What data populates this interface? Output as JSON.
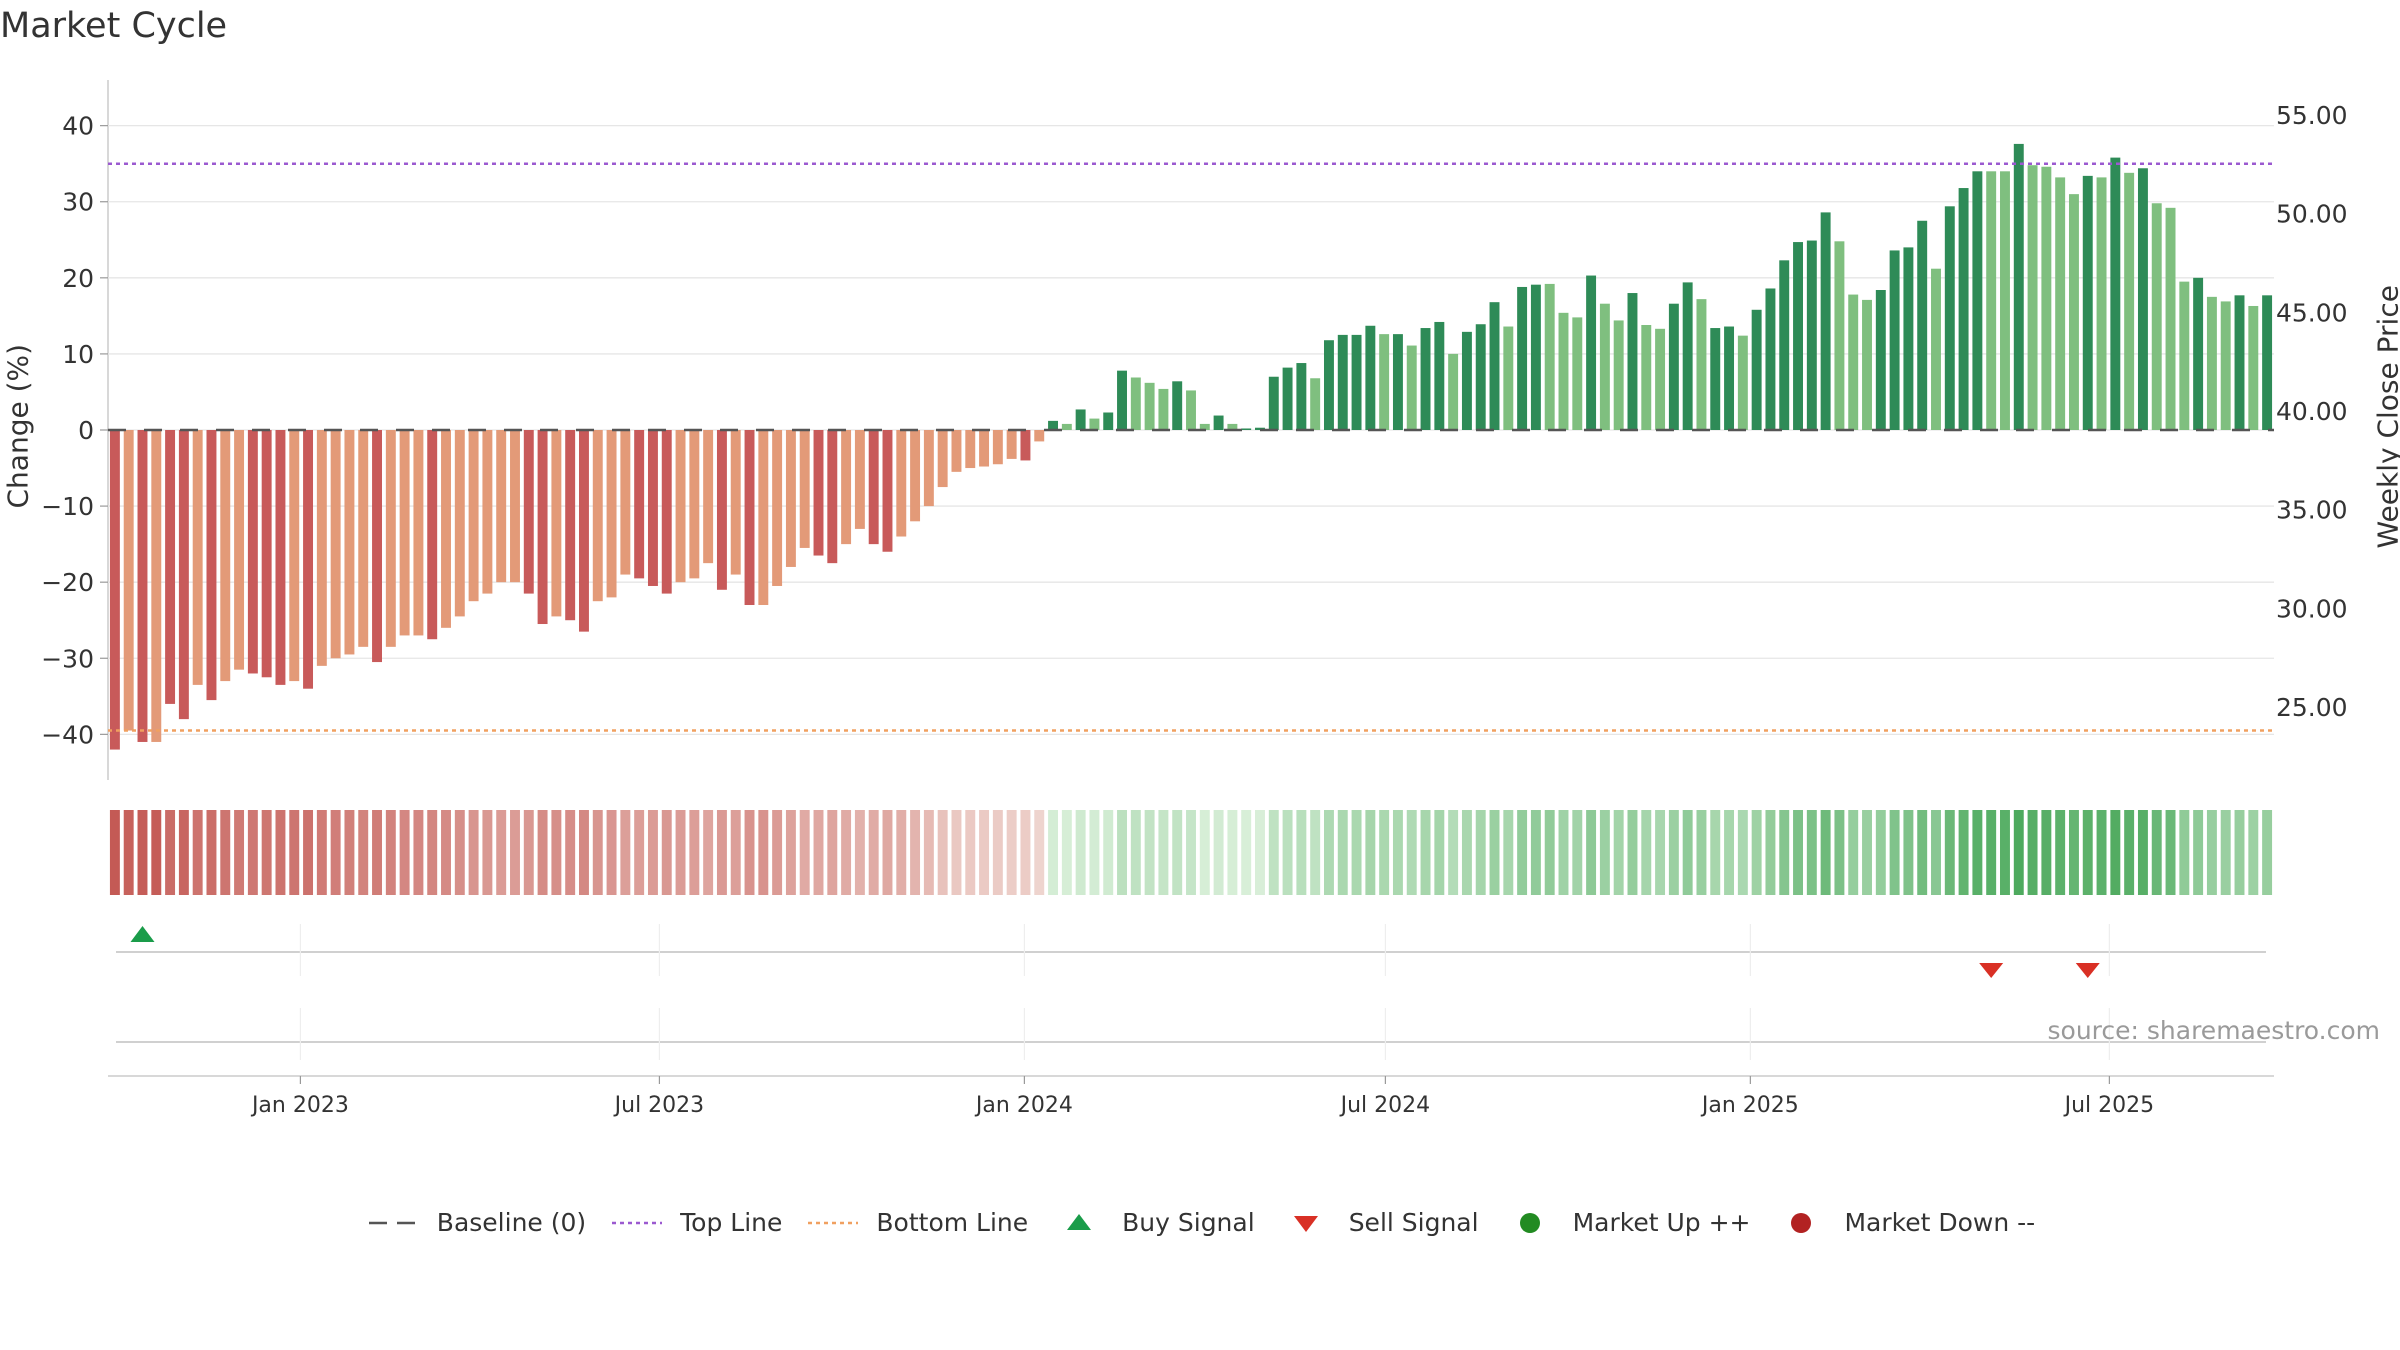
{
  "title": "Market Cycle",
  "source": "source: sharemaestro.com",
  "colors": {
    "strong_down": "#c85a5a",
    "weak_down": "#e39a78",
    "strong_up": "#2e8b57",
    "weak_up": "#7fbf7f",
    "top_line": "#9b59d0",
    "bottom_line": "#f0a060",
    "baseline": "#555555",
    "buy": "#1a9c4a",
    "sell": "#d93025",
    "market_up": "#228b22",
    "market_down": "#b22222"
  },
  "legend": [
    {
      "label": "Baseline (0)",
      "icon": "dash-line"
    },
    {
      "label": "Top Line",
      "icon": "dotted-purple-line"
    },
    {
      "label": "Bottom Line",
      "icon": "dotted-orange-line"
    },
    {
      "label": "Buy Signal",
      "icon": "triangle-up"
    },
    {
      "label": "Sell Signal",
      "icon": "triangle-down"
    },
    {
      "label": "Market Up ++",
      "icon": "circle-green"
    },
    {
      "label": "Market Down --",
      "icon": "circle-red"
    }
  ],
  "chart_data": {
    "type": "bar",
    "title": "Market Cycle",
    "ylabel": "Change (%)",
    "y2label": "Weekly Close Price",
    "ylim": [
      -46,
      46
    ],
    "y2lim": [
      20,
      57
    ],
    "yticks": [
      40,
      30,
      20,
      10,
      0,
      -10,
      -20,
      -30,
      -40
    ],
    "ytick_labels": [
      "40",
      "30",
      "20",
      "10",
      "0",
      "−10",
      "−20",
      "−30",
      "−40"
    ],
    "y2ticks": [
      55,
      50,
      45,
      40,
      35,
      30,
      25
    ],
    "y2tick_labels": [
      "55.00",
      "50.00",
      "45.00",
      "40.00",
      "35.00",
      "30.00",
      "25.00"
    ],
    "xlim": [
      "2022-09-26",
      "2025-09-22"
    ],
    "xticks": [
      "2023-01-01",
      "2023-07-01",
      "2024-01-01",
      "2024-07-01",
      "2025-01-01",
      "2025-07-01"
    ],
    "xtick_labels": [
      "Jan 2023",
      "Jul 2023",
      "Jan 2024",
      "Jul 2024",
      "Jan 2025",
      "Jul 2025"
    ],
    "grid": true,
    "baseline": 0,
    "top_line": 35,
    "bottom_line": -39.5,
    "start_week": "2022-09-26",
    "interval_days": 7,
    "values": [
      -42,
      -39.5,
      -41,
      -41,
      -36,
      -38,
      -33.5,
      -35.5,
      -33,
      -31.5,
      -32,
      -32.5,
      -33.5,
      -33,
      -34,
      -31,
      -30,
      -29.5,
      -28.5,
      -30.5,
      -28.5,
      -27,
      -27,
      -27.5,
      -26,
      -24.5,
      -22.5,
      -21.5,
      -20,
      -20,
      -21.5,
      -25.5,
      -24.5,
      -25,
      -26.5,
      -22.5,
      -22,
      -19,
      -19.5,
      -20.5,
      -21.5,
      -20,
      -19.5,
      -17.5,
      -21,
      -19,
      -23,
      -23,
      -20.5,
      -18,
      -15.5,
      -16.5,
      -17.5,
      -15,
      -13,
      -15,
      -16,
      -14,
      -12,
      -10,
      -7.5,
      -5.5,
      -5,
      -4.8,
      -4.5,
      -3.8,
      -4,
      -1.5,
      1.2,
      0.8,
      2.7,
      1.5,
      2.3,
      7.8,
      6.9,
      6.2,
      5.4,
      6.4,
      5.2,
      0.8,
      1.9,
      0.8,
      0.2,
      0.3,
      7,
      8.2,
      8.8,
      6.8,
      11.8,
      12.5,
      12.5,
      13.7,
      12.6,
      12.6,
      11.1,
      13.4,
      14.2,
      10,
      12.9,
      13.9,
      16.8,
      13.6,
      18.8,
      19.1,
      19.2,
      15.4,
      14.8,
      20.3,
      16.6,
      14.4,
      18,
      13.8,
      13.3,
      16.6,
      19.4,
      17.2,
      13.4,
      13.6,
      12.4,
      15.8,
      18.6,
      22.3,
      24.7,
      24.9,
      28.6,
      24.8,
      17.8,
      17.1,
      18.4,
      23.6,
      24,
      27.5,
      21.2,
      29.4,
      31.8,
      34,
      34,
      34,
      37.6,
      34.8,
      34.6,
      33.2,
      31,
      33.4,
      33.2,
      35.8,
      33.8,
      34.4,
      29.8,
      29.2,
      19.5,
      20,
      17.5,
      16.9,
      17.7,
      16.3,
      17.7
    ],
    "strength": [
      1,
      0,
      1,
      0,
      1,
      1,
      0,
      1,
      0,
      0,
      1,
      1,
      1,
      0,
      1,
      0,
      0,
      0,
      0,
      1,
      0,
      0,
      0,
      1,
      0,
      0,
      0,
      0,
      0,
      0,
      1,
      1,
      0,
      1,
      1,
      0,
      0,
      0,
      1,
      1,
      1,
      0,
      0,
      0,
      1,
      0,
      1,
      0,
      0,
      0,
      0,
      1,
      1,
      0,
      0,
      1,
      1,
      0,
      0,
      0,
      0,
      0,
      0,
      0,
      0,
      0,
      1,
      0,
      1,
      0,
      1,
      0,
      1,
      1,
      0,
      0,
      0,
      1,
      0,
      0,
      1,
      0,
      1,
      1,
      1,
      1,
      1,
      0,
      1,
      1,
      1,
      1,
      0,
      1,
      0,
      1,
      1,
      0,
      1,
      1,
      1,
      0,
      1,
      1,
      0,
      0,
      0,
      1,
      0,
      0,
      1,
      0,
      0,
      1,
      1,
      0,
      1,
      1,
      0,
      1,
      1,
      1,
      1,
      1,
      1,
      0,
      0,
      0,
      1,
      1,
      1,
      1,
      0,
      1,
      1,
      1,
      0,
      0,
      1,
      0,
      0,
      0,
      0,
      1,
      0,
      1,
      0,
      1,
      0,
      0,
      0,
      1,
      0,
      0,
      1,
      0,
      1
    ],
    "buy_signals": [
      2
    ],
    "sell_signals": [
      136,
      143
    ]
  }
}
